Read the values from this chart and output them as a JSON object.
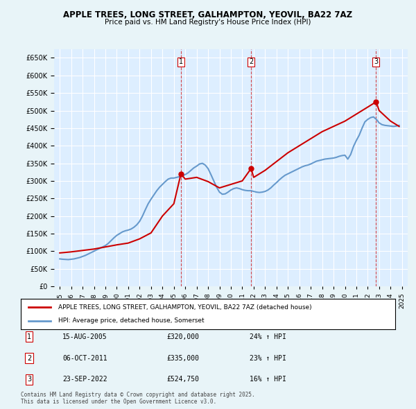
{
  "title": "APPLE TREES, LONG STREET, GALHAMPTON, YEOVIL, BA22 7AZ",
  "subtitle": "Price paid vs. HM Land Registry's House Price Index (HPI)",
  "ylabel": "",
  "ylim": [
    0,
    675000
  ],
  "yticks": [
    0,
    50000,
    100000,
    150000,
    200000,
    250000,
    300000,
    350000,
    400000,
    450000,
    500000,
    550000,
    600000,
    650000
  ],
  "background_color": "#e8f4f8",
  "plot_bg_color": "#ddeeff",
  "grid_color": "#ffffff",
  "legend_label_red": "APPLE TREES, LONG STREET, GALHAMPTON, YEOVIL, BA22 7AZ (detached house)",
  "legend_label_blue": "HPI: Average price, detached house, Somerset",
  "footnote": "Contains HM Land Registry data © Crown copyright and database right 2025.\nThis data is licensed under the Open Government Licence v3.0.",
  "transactions": [
    {
      "num": 1,
      "date": "15-AUG-2005",
      "price": "£320,000",
      "hpi": "24% ↑ HPI",
      "year": 2005.62
    },
    {
      "num": 2,
      "date": "06-OCT-2011",
      "price": "£335,000",
      "hpi": "23% ↑ HPI",
      "year": 2011.77
    },
    {
      "num": 3,
      "date": "23-SEP-2022",
      "price": "£524,750",
      "hpi": "16% ↑ HPI",
      "year": 2022.73
    }
  ],
  "hpi_data": {
    "years": [
      1995.0,
      1995.25,
      1995.5,
      1995.75,
      1996.0,
      1996.25,
      1996.5,
      1996.75,
      1997.0,
      1997.25,
      1997.5,
      1997.75,
      1998.0,
      1998.25,
      1998.5,
      1998.75,
      1999.0,
      1999.25,
      1999.5,
      1999.75,
      2000.0,
      2000.25,
      2000.5,
      2000.75,
      2001.0,
      2001.25,
      2001.5,
      2001.75,
      2002.0,
      2002.25,
      2002.5,
      2002.75,
      2003.0,
      2003.25,
      2003.5,
      2003.75,
      2004.0,
      2004.25,
      2004.5,
      2004.75,
      2005.0,
      2005.25,
      2005.5,
      2005.75,
      2006.0,
      2006.25,
      2006.5,
      2006.75,
      2007.0,
      2007.25,
      2007.5,
      2007.75,
      2008.0,
      2008.25,
      2008.5,
      2008.75,
      2009.0,
      2009.25,
      2009.5,
      2009.75,
      2010.0,
      2010.25,
      2010.5,
      2010.75,
      2011.0,
      2011.25,
      2011.5,
      2011.75,
      2012.0,
      2012.25,
      2012.5,
      2012.75,
      2013.0,
      2013.25,
      2013.5,
      2013.75,
      2014.0,
      2014.25,
      2014.5,
      2014.75,
      2015.0,
      2015.25,
      2015.5,
      2015.75,
      2016.0,
      2016.25,
      2016.5,
      2016.75,
      2017.0,
      2017.25,
      2017.5,
      2017.75,
      2018.0,
      2018.25,
      2018.5,
      2018.75,
      2019.0,
      2019.25,
      2019.5,
      2019.75,
      2020.0,
      2020.25,
      2020.5,
      2020.75,
      2021.0,
      2021.25,
      2021.5,
      2021.75,
      2022.0,
      2022.25,
      2022.5,
      2022.75,
      2023.0,
      2023.25,
      2023.5,
      2023.75,
      2024.0,
      2024.25,
      2024.5,
      2024.75
    ],
    "values": [
      78000,
      77000,
      76500,
      76000,
      77000,
      78000,
      80000,
      82000,
      85000,
      88000,
      92000,
      96000,
      100000,
      104000,
      108000,
      112000,
      116000,
      122000,
      130000,
      138000,
      145000,
      150000,
      155000,
      158000,
      160000,
      163000,
      168000,
      175000,
      185000,
      200000,
      218000,
      235000,
      248000,
      260000,
      272000,
      282000,
      290000,
      298000,
      305000,
      308000,
      308000,
      310000,
      312000,
      314000,
      318000,
      323000,
      330000,
      337000,
      342000,
      348000,
      350000,
      345000,
      335000,
      318000,
      300000,
      282000,
      268000,
      262000,
      263000,
      268000,
      274000,
      278000,
      280000,
      278000,
      275000,
      273000,
      272000,
      272000,
      270000,
      268000,
      267000,
      268000,
      270000,
      274000,
      280000,
      288000,
      295000,
      303000,
      310000,
      316000,
      320000,
      324000,
      328000,
      332000,
      336000,
      340000,
      343000,
      345000,
      348000,
      352000,
      356000,
      358000,
      360000,
      362000,
      363000,
      364000,
      365000,
      367000,
      370000,
      372000,
      373000,
      362000,
      375000,
      398000,
      415000,
      430000,
      450000,
      468000,
      475000,
      480000,
      482000,
      475000,
      465000,
      460000,
      458000,
      457000,
      456000,
      455000,
      456000,
      458000
    ]
  },
  "property_data": {
    "years": [
      1995.0,
      1996.0,
      1997.0,
      1998.0,
      1999.0,
      2000.0,
      2001.0,
      2002.0,
      2003.0,
      2004.0,
      2005.0,
      2005.62,
      2006.0,
      2007.0,
      2008.0,
      2009.0,
      2010.0,
      2011.0,
      2011.77,
      2012.0,
      2013.0,
      2014.0,
      2015.0,
      2016.0,
      2017.0,
      2018.0,
      2019.0,
      2020.0,
      2021.0,
      2022.0,
      2022.73,
      2023.0,
      2024.0,
      2024.75
    ],
    "values": [
      95000,
      98000,
      102000,
      106000,
      112000,
      118000,
      123000,
      135000,
      152000,
      200000,
      235000,
      320000,
      305000,
      310000,
      298000,
      280000,
      290000,
      300000,
      335000,
      310000,
      330000,
      355000,
      380000,
      400000,
      420000,
      440000,
      455000,
      470000,
      490000,
      510000,
      524750,
      500000,
      470000,
      455000
    ]
  },
  "sale_years": [
    2005.62,
    2011.77,
    2022.73
  ],
  "sale_values": [
    320000,
    335000,
    524750
  ],
  "sale_labels": [
    "1",
    "2",
    "3"
  ],
  "red_color": "#cc0000",
  "blue_color": "#6699cc",
  "dashed_line_color": "#cc0000"
}
